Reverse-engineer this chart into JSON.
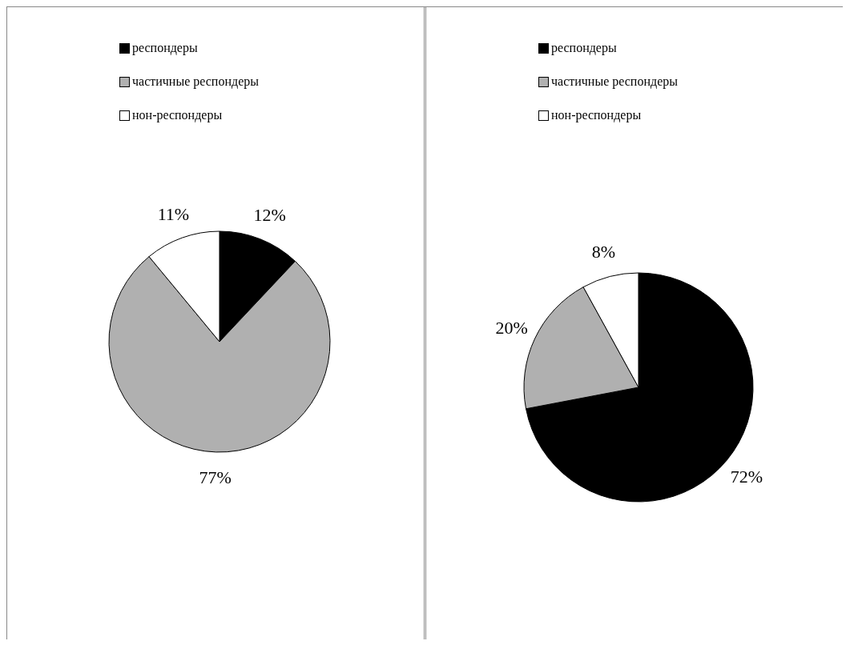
{
  "chart_data": [
    {
      "type": "pie",
      "categories": [
        "респондеры",
        "частичные респондеры",
        "нон-респондеры"
      ],
      "values": [
        12,
        77,
        11
      ],
      "colors": [
        "#000000",
        "#b0b0b0",
        "#ffffff"
      ],
      "value_labels": [
        "12%",
        "77%",
        "11%"
      ],
      "legend": "top"
    },
    {
      "type": "pie",
      "categories": [
        "респондеры",
        "частичные респондеры",
        "нон-респондеры"
      ],
      "values": [
        72,
        20,
        8
      ],
      "colors": [
        "#000000",
        "#b0b0b0",
        "#ffffff"
      ],
      "value_labels": [
        "72%",
        "20%",
        "8%"
      ],
      "legend": "top"
    }
  ]
}
